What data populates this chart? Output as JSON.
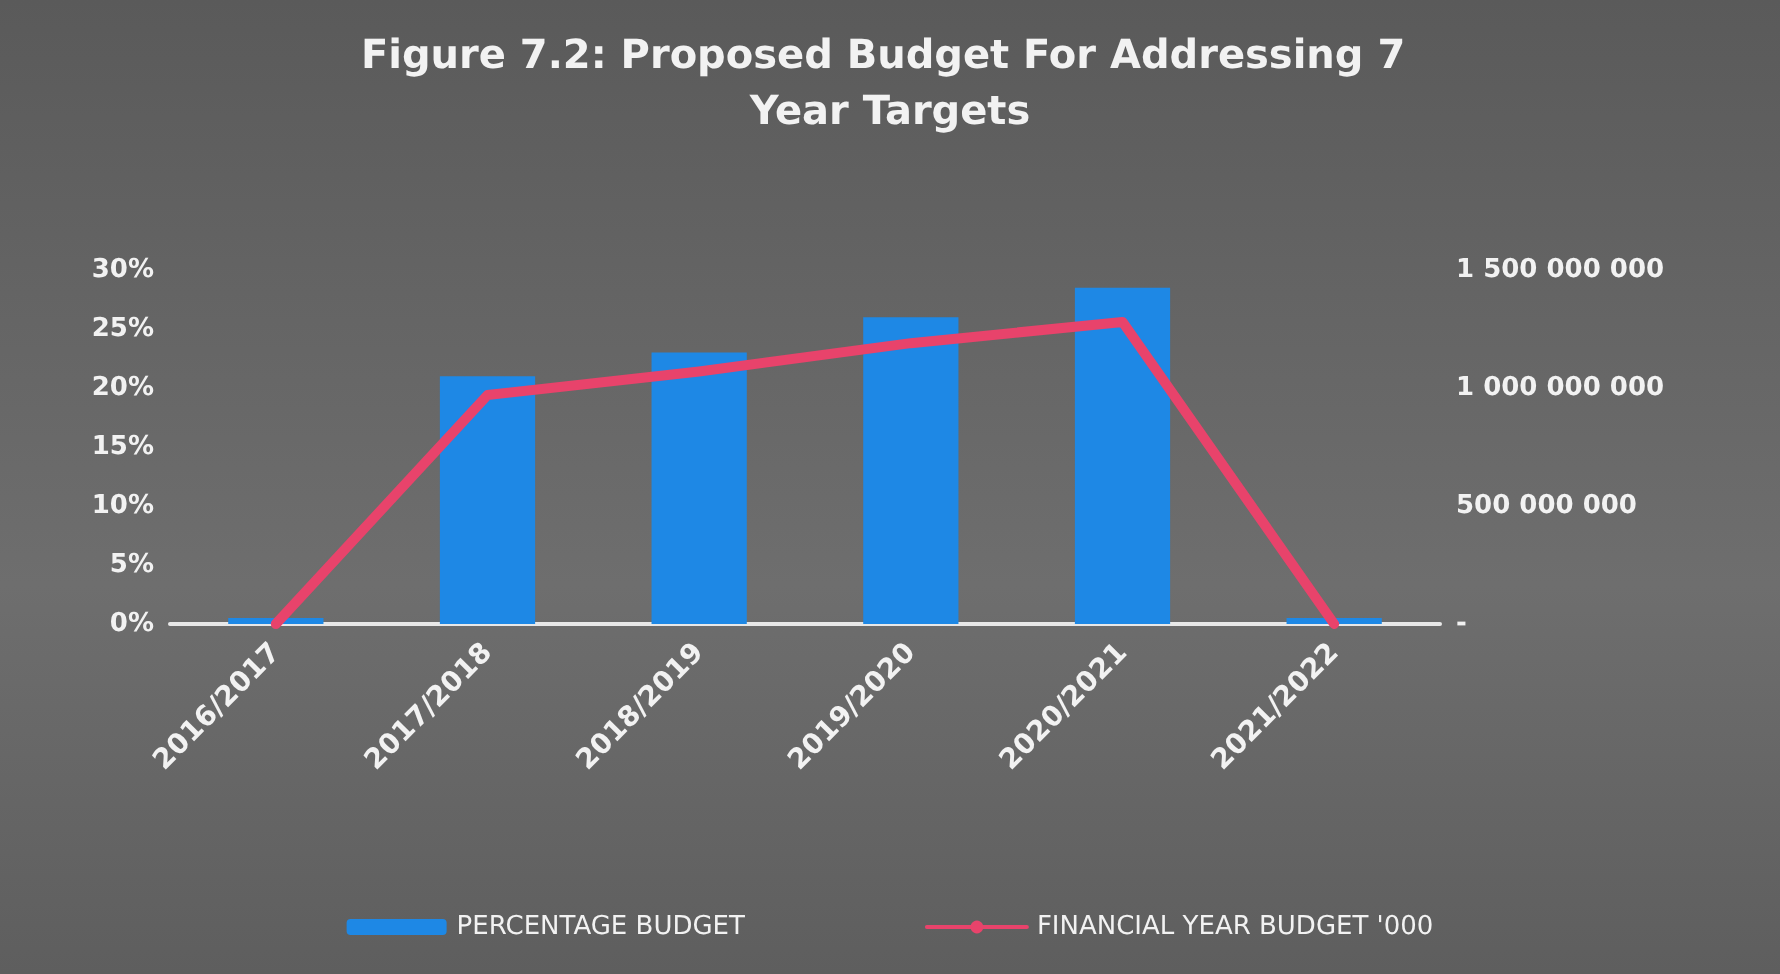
{
  "chart_data": {
    "type": "bar",
    "title": "Figure 7.2: Proposed Budget For Addressing 7 Year Targets",
    "categories": [
      "2016/2017",
      "2017/2018",
      "2018/2019",
      "2019/2020",
      "2020/2021",
      "2021/2022"
    ],
    "series": [
      {
        "name": "PERCENTAGE BUDGET",
        "color": "#1e88e5",
        "values": [
          0.5,
          21,
          23,
          26,
          28.5,
          0.5
        ]
      },
      {
        "name": "FINANCIAL YEAR BUDGET '000",
        "type": "line",
        "axis": "y2",
        "color": "#e8436b",
        "values": [
          0,
          970000000,
          1070000000,
          1190000000,
          1280000000,
          0
        ]
      }
    ],
    "ylim": [
      0,
      30
    ],
    "yticks": [
      {
        "value": 0,
        "label": "0%"
      },
      {
        "value": 5,
        "label": "5%"
      },
      {
        "value": 10,
        "label": "10%"
      },
      {
        "value": 15,
        "label": "15%"
      },
      {
        "value": 20,
        "label": "20%"
      },
      {
        "value": 25,
        "label": "25%"
      },
      {
        "value": 30,
        "label": "30%"
      }
    ],
    "y2lim": [
      0,
      1500000000
    ],
    "y2ticks": [
      {
        "value": 0,
        "label": "-"
      },
      {
        "value": 500000000,
        "label": "500 000 000"
      },
      {
        "value": 1000000000,
        "label": "1 000 000 000"
      },
      {
        "value": 1500000000,
        "label": "1 500 000 000"
      }
    ],
    "grid": false,
    "legend": "bottom",
    "marker": "none",
    "line_style": "solid"
  }
}
